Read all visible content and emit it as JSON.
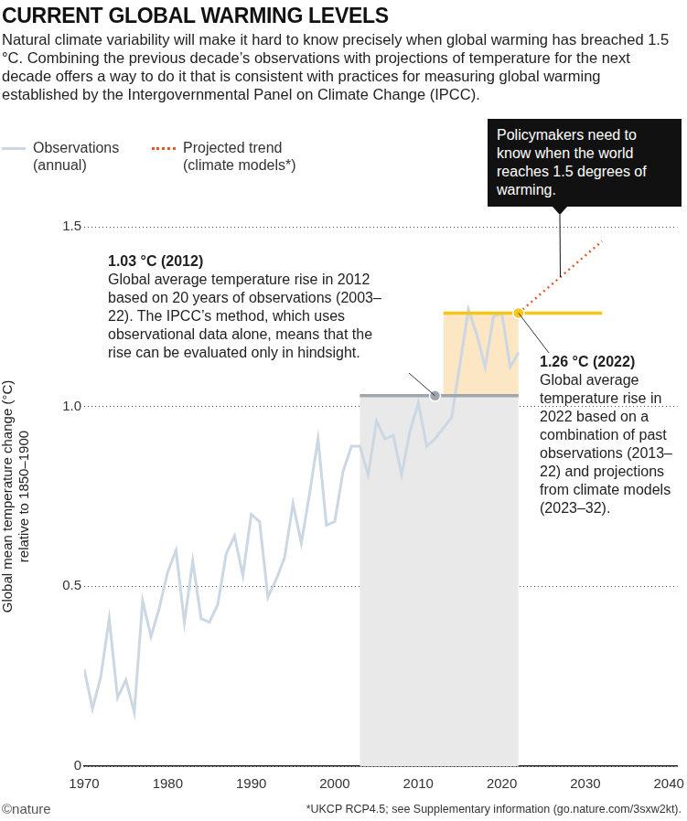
{
  "title": "CURRENT GLOBAL WARMING LEVELS",
  "subtitle": "Natural climate variability will make it hard to know precisely when global warming has breached 1.5 °C. Combining the previous decade’s observations with projections of temperature for the next decade offers a way to do it that is consistent with practices for measuring global warming established by the Intergovernmental Panel on Climate Change (IPCC).",
  "callout": "Policymakers need to know when the world reaches 1.5 degrees of warming.",
  "footnote": "*UKCP RCP4.5; see Supplementary information (go.nature.com/3sxw2kt).",
  "credit": "©nature",
  "chart_data": {
    "type": "line",
    "y_label": [
      "Global mean temperature change (°C)",
      "relative to 1850–1900"
    ],
    "x": [
      1970,
      1971,
      1972,
      1973,
      1974,
      1975,
      1976,
      1977,
      1978,
      1979,
      1980,
      1981,
      1982,
      1983,
      1984,
      1985,
      1986,
      1987,
      1988,
      1989,
      1990,
      1991,
      1992,
      1993,
      1994,
      1995,
      1996,
      1997,
      1998,
      1999,
      2000,
      2001,
      2002,
      2003,
      2004,
      2005,
      2006,
      2007,
      2008,
      2009,
      2010,
      2011,
      2012,
      2013,
      2014,
      2015,
      2016,
      2017,
      2018,
      2019,
      2020,
      2021,
      2022
    ],
    "series": [
      {
        "name": "Observations (annual)",
        "color": "#cbd8e3",
        "line_style": "solid",
        "values": [
          0.27,
          0.16,
          0.25,
          0.41,
          0.19,
          0.24,
          0.15,
          0.46,
          0.36,
          0.44,
          0.54,
          0.6,
          0.4,
          0.57,
          0.41,
          0.4,
          0.45,
          0.59,
          0.64,
          0.53,
          0.7,
          0.68,
          0.47,
          0.52,
          0.58,
          0.73,
          0.62,
          0.76,
          0.91,
          0.67,
          0.68,
          0.82,
          0.89,
          0.89,
          0.81,
          0.96,
          0.91,
          0.92,
          0.81,
          0.93,
          1.01,
          0.89,
          0.91,
          0.94,
          0.97,
          1.12,
          1.27,
          1.2,
          1.11,
          1.25,
          1.26,
          1.11,
          1.15
        ]
      },
      {
        "name": "Projected trend (climate models*)",
        "color": "#e5572b",
        "line_style": "dotted",
        "x": [
          2022,
          2032
        ],
        "values": [
          1.26,
          1.46
        ]
      }
    ],
    "levels": [
      {
        "label": "1.03 °C (2012)",
        "text": "Global average temperature rise in 2012 based on 20 years of observations (2003–22). The IPCC’s method, which uses observational data alone, means that the rise can be evaluated only in hindsight.",
        "year": 2012,
        "value": 1.03,
        "span": [
          2003,
          2022
        ],
        "color": "#9ea7ae"
      },
      {
        "label": "1.26 °C (2022)",
        "text": "Global average temperature rise in 2022 based on a combination of past observations (2013–22) and projections from climate models (2023–32).",
        "year": 2022,
        "value": 1.26,
        "span": [
          2013,
          2032
        ],
        "color": "#f5c518"
      }
    ],
    "xlim": [
      1970,
      2041
    ],
    "xticks": [
      1970,
      1980,
      1990,
      2000,
      2010,
      2020,
      2030,
      2040
    ],
    "ylim": [
      0,
      1.5
    ],
    "yticks": [
      0,
      0.5,
      {
        "value": 1,
        "label": "1.0"
      },
      1.5
    ],
    "grid": true,
    "legend": "top-left"
  }
}
